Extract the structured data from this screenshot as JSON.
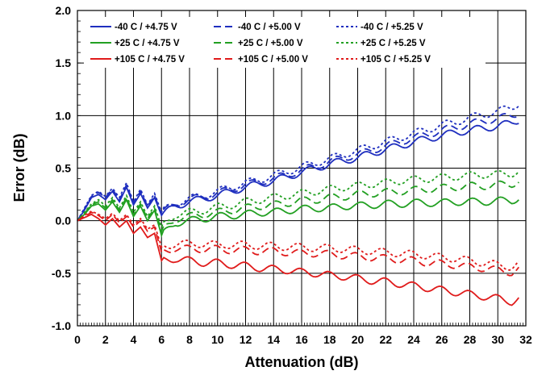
{
  "chart_data": {
    "type": "line",
    "xlabel": "Attenuation (dB)",
    "ylabel": "Error (dB)",
    "xlim": [
      0,
      32
    ],
    "ylim": [
      -1.0,
      2.0
    ],
    "xticks": [
      "0",
      "2",
      "4",
      "6",
      "8",
      "10",
      "12",
      "14",
      "16",
      "18",
      "20",
      "22",
      "24",
      "26",
      "28",
      "30",
      "32"
    ],
    "yticks": [
      "2.0",
      "1.5",
      "1.0",
      "0.5",
      "0.0",
      "-0.5",
      "-1.0"
    ],
    "grid": "vertical major lines every 2 dB, horizontal lines every 0.5 dB, minor ticks every 0.1 dB",
    "legend_position": "top-left, inside plot, 3 columns",
    "colors": {
      "-40 C": "#1f2fbf",
      "+25 C": "#22a022",
      "+105 C": "#e01b1b"
    },
    "x": [
      0,
      0.5,
      1,
      1.5,
      2,
      2.5,
      3,
      3.5,
      4,
      4.5,
      5,
      5.5,
      6,
      7,
      8,
      9,
      10,
      11,
      12,
      13,
      14,
      15,
      16,
      17,
      18,
      19,
      20,
      21,
      22,
      23,
      24,
      25,
      26,
      27,
      28,
      29,
      30,
      31,
      31.5
    ],
    "series": [
      {
        "name": "-40 C / +4.75 V",
        "color": "#1f2fbf",
        "dash": "solid",
        "values": [
          0.0,
          0.1,
          0.22,
          0.25,
          0.2,
          0.28,
          0.18,
          0.32,
          0.15,
          0.26,
          0.12,
          0.22,
          0.05,
          0.14,
          0.18,
          0.21,
          0.24,
          0.28,
          0.32,
          0.35,
          0.38,
          0.42,
          0.46,
          0.5,
          0.54,
          0.57,
          0.6,
          0.64,
          0.68,
          0.71,
          0.75,
          0.78,
          0.81,
          0.84,
          0.86,
          0.88,
          0.9,
          0.93,
          0.96
        ]
      },
      {
        "name": "-40 C / +5.00 V",
        "color": "#1f2fbf",
        "dash": "dashed",
        "values": [
          0.0,
          0.11,
          0.23,
          0.27,
          0.22,
          0.3,
          0.2,
          0.34,
          0.17,
          0.28,
          0.14,
          0.24,
          0.07,
          0.16,
          0.2,
          0.23,
          0.26,
          0.3,
          0.34,
          0.37,
          0.4,
          0.44,
          0.48,
          0.52,
          0.56,
          0.6,
          0.63,
          0.67,
          0.71,
          0.75,
          0.79,
          0.82,
          0.86,
          0.89,
          0.92,
          0.95,
          0.97,
          1.0,
          1.03
        ]
      },
      {
        "name": "-40 C / +5.25 V",
        "color": "#1f2fbf",
        "dash": "dotted",
        "values": [
          0.0,
          0.12,
          0.24,
          0.28,
          0.23,
          0.31,
          0.22,
          0.36,
          0.18,
          0.3,
          0.15,
          0.26,
          0.08,
          0.17,
          0.21,
          0.24,
          0.28,
          0.32,
          0.36,
          0.39,
          0.43,
          0.47,
          0.51,
          0.55,
          0.59,
          0.63,
          0.67,
          0.71,
          0.75,
          0.79,
          0.83,
          0.87,
          0.91,
          0.94,
          0.98,
          1.01,
          1.04,
          1.08,
          1.12
        ]
      },
      {
        "name": "+25 C / +4.75 V",
        "color": "#22a022",
        "dash": "solid",
        "values": [
          0.0,
          0.06,
          0.14,
          0.16,
          0.1,
          0.18,
          0.08,
          0.2,
          0.04,
          0.14,
          0.0,
          0.1,
          -0.14,
          -0.02,
          0.0,
          0.02,
          0.04,
          0.05,
          0.06,
          0.08,
          0.08,
          0.1,
          0.11,
          0.12,
          0.12,
          0.14,
          0.14,
          0.15,
          0.16,
          0.16,
          0.17,
          0.17,
          0.17,
          0.18,
          0.18,
          0.18,
          0.19,
          0.19,
          0.22
        ]
      },
      {
        "name": "+25 C / +5.00 V",
        "color": "#22a022",
        "dash": "dashed",
        "values": [
          0.0,
          0.07,
          0.15,
          0.18,
          0.12,
          0.2,
          0.1,
          0.22,
          0.06,
          0.16,
          0.02,
          0.12,
          -0.1,
          0.02,
          0.04,
          0.06,
          0.08,
          0.1,
          0.12,
          0.14,
          0.15,
          0.17,
          0.19,
          0.2,
          0.22,
          0.23,
          0.25,
          0.26,
          0.27,
          0.28,
          0.29,
          0.3,
          0.31,
          0.32,
          0.33,
          0.33,
          0.34,
          0.35,
          0.38
        ]
      },
      {
        "name": "+25 C / +5.25 V",
        "color": "#22a022",
        "dash": "dotted",
        "values": [
          0.0,
          0.08,
          0.16,
          0.2,
          0.14,
          0.22,
          0.12,
          0.24,
          0.08,
          0.18,
          0.04,
          0.14,
          -0.06,
          0.06,
          0.08,
          0.1,
          0.13,
          0.15,
          0.18,
          0.2,
          0.22,
          0.24,
          0.26,
          0.28,
          0.3,
          0.32,
          0.33,
          0.35,
          0.36,
          0.38,
          0.39,
          0.4,
          0.41,
          0.42,
          0.43,
          0.44,
          0.44,
          0.45,
          0.47
        ]
      },
      {
        "name": "+105 C / +4.75 V",
        "color": "#e01b1b",
        "dash": "solid",
        "values": [
          0.0,
          0.03,
          0.06,
          0.02,
          -0.04,
          0.02,
          -0.06,
          0.0,
          -0.12,
          -0.06,
          -0.16,
          -0.12,
          -0.38,
          -0.36,
          -0.38,
          -0.4,
          -0.4,
          -0.42,
          -0.43,
          -0.45,
          -0.46,
          -0.47,
          -0.49,
          -0.5,
          -0.52,
          -0.53,
          -0.55,
          -0.57,
          -0.58,
          -0.6,
          -0.62,
          -0.64,
          -0.66,
          -0.68,
          -0.7,
          -0.72,
          -0.74,
          -0.77,
          -0.74
        ]
      },
      {
        "name": "+105 C / +5.00 V",
        "color": "#e01b1b",
        "dash": "dashed",
        "values": [
          0.0,
          0.04,
          0.08,
          0.05,
          0.0,
          0.06,
          -0.02,
          0.04,
          -0.06,
          0.0,
          -0.1,
          -0.06,
          -0.3,
          -0.26,
          -0.27,
          -0.27,
          -0.27,
          -0.28,
          -0.28,
          -0.29,
          -0.29,
          -0.3,
          -0.31,
          -0.31,
          -0.32,
          -0.33,
          -0.34,
          -0.35,
          -0.36,
          -0.37,
          -0.38,
          -0.4,
          -0.41,
          -0.42,
          -0.44,
          -0.45,
          -0.47,
          -0.49,
          -0.46
        ]
      },
      {
        "name": "+105 C / +5.25 V",
        "color": "#e01b1b",
        "dash": "dotted",
        "values": [
          0.0,
          0.05,
          0.09,
          0.06,
          0.02,
          0.07,
          0.0,
          0.06,
          -0.04,
          0.02,
          -0.08,
          -0.04,
          -0.25,
          -0.22,
          -0.22,
          -0.22,
          -0.23,
          -0.23,
          -0.23,
          -0.24,
          -0.24,
          -0.25,
          -0.25,
          -0.26,
          -0.26,
          -0.27,
          -0.28,
          -0.29,
          -0.3,
          -0.31,
          -0.32,
          -0.33,
          -0.35,
          -0.36,
          -0.38,
          -0.4,
          -0.42,
          -0.44,
          -0.41
        ]
      }
    ]
  }
}
